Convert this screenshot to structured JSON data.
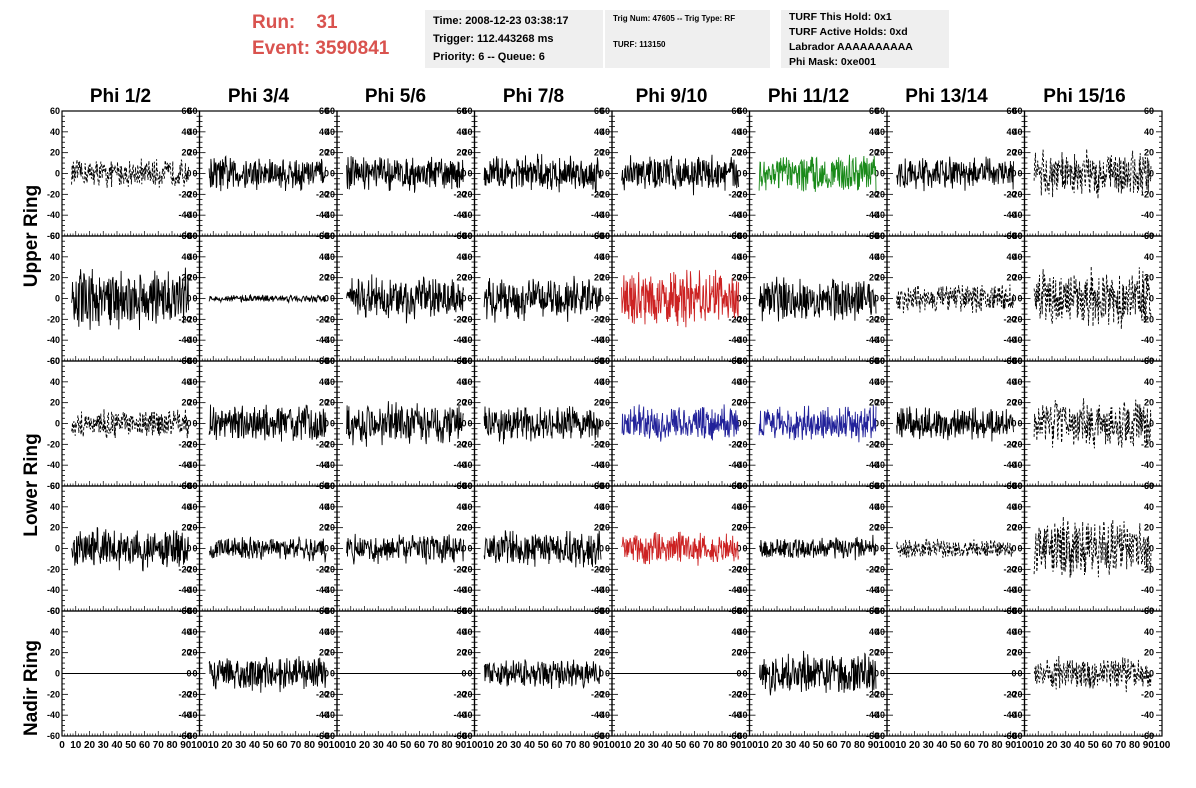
{
  "header": {
    "run_label": "Run:",
    "run_value": "31",
    "event_label": "Event:",
    "event_value": "3590841"
  },
  "info_time": {
    "time": "Time: 2008-12-23 03:38:17",
    "trigger": "Trigger: 112.443268 ms",
    "priority": "Priority: 6 -- Queue: 6"
  },
  "info_trig": {
    "trig": "Trig Num: 47605 -- Trig Type: RF",
    "turf": "TURF: 113150"
  },
  "info_turf": {
    "this_hold": "TURF This Hold: 0x1",
    "active_holds": "TURF Active Holds: 0xd",
    "labrador": "Labrador AAAAAAAAAA",
    "phi_mask": "Phi Mask: 0xe001"
  },
  "columns": [
    "Phi 1/2",
    "Phi 3/4",
    "Phi 5/6",
    "Phi 7/8",
    "Phi 9/10",
    "Phi 11/12",
    "Phi 13/14",
    "Phi 15/16"
  ],
  "ring_labels": [
    "Upper Ring",
    "Lower Ring",
    "Nadir Ring"
  ],
  "chart_data": {
    "type": "line",
    "ylim": [
      -60,
      60
    ],
    "xlim": [
      0,
      100
    ],
    "y_ticks": [
      "60",
      "40",
      "20",
      "0",
      "-20",
      "-40",
      "-60"
    ],
    "x_ticks": [
      "0",
      "10",
      "20",
      "30",
      "40",
      "50",
      "60",
      "70",
      "80",
      "90",
      "100"
    ],
    "colors": {
      "black": "#000000",
      "green": "#1a8a1a",
      "red": "#cc2222",
      "blue": "#22229a"
    },
    "panels": [
      [
        {
          "amp": 12,
          "style": "dashed",
          "color": "black"
        },
        {
          "amp": 15,
          "style": "solid",
          "color": "black"
        },
        {
          "amp": 15,
          "style": "solid",
          "color": "black"
        },
        {
          "amp": 15,
          "style": "solid",
          "color": "black"
        },
        {
          "amp": 16,
          "style": "solid",
          "color": "black"
        },
        {
          "amp": 16,
          "style": "solid",
          "color": "green"
        },
        {
          "amp": 14,
          "style": "solid",
          "color": "black"
        },
        {
          "amp": 20,
          "style": "dashed",
          "color": "black"
        }
      ],
      [
        {
          "amp": 25,
          "style": "solid",
          "color": "black"
        },
        {
          "amp": 3,
          "style": "solid",
          "color": "black"
        },
        {
          "amp": 18,
          "style": "solid",
          "color": "black"
        },
        {
          "amp": 18,
          "style": "solid",
          "color": "black"
        },
        {
          "amp": 25,
          "style": "solid",
          "color": "red"
        },
        {
          "amp": 18,
          "style": "solid",
          "color": "black"
        },
        {
          "amp": 12,
          "style": "dashed",
          "color": "black"
        },
        {
          "amp": 25,
          "style": "dashed",
          "color": "black"
        }
      ],
      [
        {
          "amp": 12,
          "style": "dashed",
          "color": "black"
        },
        {
          "amp": 16,
          "style": "solid",
          "color": "black"
        },
        {
          "amp": 18,
          "style": "solid",
          "color": "black"
        },
        {
          "amp": 15,
          "style": "solid",
          "color": "black"
        },
        {
          "amp": 15,
          "style": "solid",
          "color": "blue"
        },
        {
          "amp": 15,
          "style": "solid",
          "color": "blue"
        },
        {
          "amp": 14,
          "style": "solid",
          "color": "black"
        },
        {
          "amp": 20,
          "style": "dashed",
          "color": "black"
        }
      ],
      [
        {
          "amp": 18,
          "style": "solid",
          "color": "black"
        },
        {
          "amp": 10,
          "style": "solid",
          "color": "black"
        },
        {
          "amp": 12,
          "style": "solid",
          "color": "black"
        },
        {
          "amp": 15,
          "style": "solid",
          "color": "black"
        },
        {
          "amp": 14,
          "style": "solid",
          "color": "red"
        },
        {
          "amp": 10,
          "style": "solid",
          "color": "black"
        },
        {
          "amp": 8,
          "style": "dashed",
          "color": "black"
        },
        {
          "amp": 25,
          "style": "dashed",
          "color": "black"
        }
      ],
      [
        {
          "amp": 0,
          "style": "solid",
          "color": "black"
        },
        {
          "amp": 15,
          "style": "solid",
          "color": "black"
        },
        {
          "amp": 0,
          "style": "solid",
          "color": "black"
        },
        {
          "amp": 12,
          "style": "solid",
          "color": "black"
        },
        {
          "amp": 0,
          "style": "solid",
          "color": "black"
        },
        {
          "amp": 18,
          "style": "solid",
          "color": "black"
        },
        {
          "amp": 0,
          "style": "solid",
          "color": "black"
        },
        {
          "amp": 14,
          "style": "dashed",
          "color": "black"
        }
      ]
    ]
  }
}
